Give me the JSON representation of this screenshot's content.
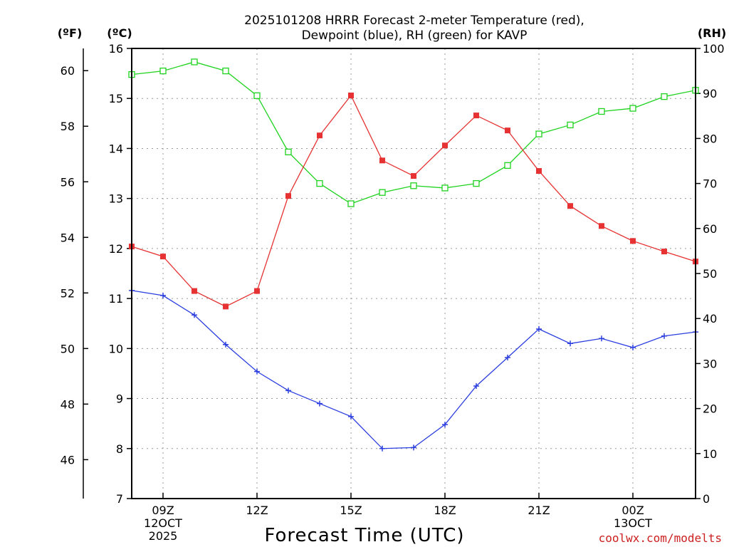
{
  "chart_data": {
    "type": "line",
    "title_line1": "2025101208 HRRR Forecast 2-meter Temperature (red),",
    "title_line2": "Dewpoint (blue), RH (green) for KAVP",
    "xlabel": "Forecast Time (UTC)",
    "credit": "coolwx.com/modelts",
    "units": {
      "fahrenheit": "(ºF)",
      "celsius": "(ºC)",
      "rh": "(RH)"
    },
    "x": [
      8,
      9,
      10,
      11,
      12,
      13,
      14,
      15,
      16,
      17,
      18,
      19,
      20,
      21,
      22,
      23,
      24,
      25,
      26
    ],
    "x_ticks": [
      {
        "x": 9,
        "lines": [
          "09Z",
          "12OCT",
          "2025"
        ]
      },
      {
        "x": 12,
        "lines": [
          "12Z"
        ]
      },
      {
        "x": 15,
        "lines": [
          "15Z"
        ]
      },
      {
        "x": 18,
        "lines": [
          "18Z"
        ]
      },
      {
        "x": 21,
        "lines": [
          "21Z"
        ]
      },
      {
        "x": 24,
        "lines": [
          "00Z",
          "13OCT"
        ]
      }
    ],
    "xlim": [
      8,
      26
    ],
    "celsius_axis": {
      "range": [
        7,
        16
      ],
      "ticks": [
        "7",
        "8",
        "9",
        "10",
        "11",
        "12",
        "13",
        "14",
        "15",
        "16"
      ]
    },
    "fahrenheit_axis": {
      "ticks": [
        "46",
        "48",
        "50",
        "52",
        "54",
        "56",
        "58",
        "60"
      ]
    },
    "rh_axis": {
      "range": [
        0,
        100
      ],
      "ticks": [
        "0",
        "10",
        "20",
        "30",
        "40",
        "50",
        "60",
        "70",
        "80",
        "90",
        "100"
      ]
    },
    "series": [
      {
        "name": "Temperature (°C)",
        "color": "#e63232",
        "marker": "filled-square",
        "axis": "celsius",
        "values": [
          12.04,
          11.84,
          11.15,
          10.84,
          11.15,
          13.05,
          14.26,
          15.06,
          13.76,
          13.45,
          14.06,
          14.66,
          14.36,
          13.55,
          12.85,
          12.45,
          12.15,
          11.94,
          11.74
        ]
      },
      {
        "name": "Dewpoint (°C)",
        "color": "#2b3ee0",
        "marker": "plus",
        "axis": "celsius",
        "values": [
          11.16,
          11.06,
          10.67,
          10.08,
          9.54,
          9.16,
          8.9,
          8.64,
          8.0,
          8.02,
          8.48,
          9.25,
          9.82,
          10.39,
          10.1,
          10.2,
          10.02,
          10.25,
          10.33
        ]
      },
      {
        "name": "RH (%)",
        "color": "#1ed21e",
        "marker": "open-square",
        "axis": "rh",
        "values": [
          94.2,
          95.0,
          97.0,
          95.0,
          89.5,
          77.0,
          70.0,
          65.5,
          68.0,
          69.5,
          69.0,
          70.0,
          74.0,
          81.0,
          83.0,
          86.0,
          86.7,
          89.3,
          90.7
        ]
      }
    ]
  }
}
